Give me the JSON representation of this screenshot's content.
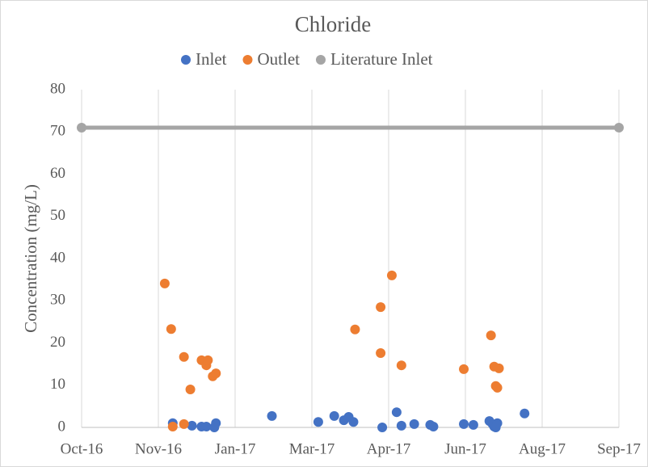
{
  "chart_data": {
    "type": "scatter",
    "title": "Chloride",
    "y_label": "Concentration (mg/L)",
    "xlim": [
      42644,
      42980
    ],
    "xticks": [
      {
        "value": 42644,
        "label": "Oct-16"
      },
      {
        "value": 42692,
        "label": "Nov-16"
      },
      {
        "value": 42740,
        "label": "Jan-17"
      },
      {
        "value": 42788,
        "label": "Mar-17"
      },
      {
        "value": 42836,
        "label": "Apr-17"
      },
      {
        "value": 42884,
        "label": "Jun-17"
      },
      {
        "value": 42932,
        "label": "Aug-17"
      },
      {
        "value": 42980,
        "label": "Sep-17"
      }
    ],
    "ylim": [
      0,
      80
    ],
    "yticks": [
      0,
      10,
      20,
      30,
      40,
      50,
      60,
      70,
      80
    ],
    "grid": "x",
    "legend": "top",
    "series": [
      {
        "name": "Inlet",
        "color": "#4472c4",
        "mode": "markers",
        "x": [
          42701,
          42713,
          42719,
          42722,
          42727,
          42728,
          42763,
          42792,
          42802,
          42808,
          42811,
          42814,
          42832,
          42841,
          42844,
          42852,
          42862,
          42864,
          42883,
          42889,
          42899,
          42901,
          42902,
          42903,
          42904,
          42921
        ],
        "values": [
          1.0,
          0.4,
          0.2,
          0.2,
          0,
          1.0,
          2.7,
          1.3,
          2.7,
          1.7,
          2.5,
          1.3,
          0,
          3.6,
          0.4,
          0.8,
          0.6,
          0.2,
          0.8,
          0.6,
          1.5,
          0.8,
          0.2,
          0,
          1.0,
          3.3
        ]
      },
      {
        "name": "Outlet",
        "color": "#ed7d31",
        "mode": "markers",
        "x": [
          42696,
          42700,
          42701,
          42708,
          42708,
          42712,
          42719,
          42722,
          42723,
          42726,
          42728,
          42815,
          42831,
          42831,
          42838,
          42844,
          42883,
          42900,
          42902,
          42905,
          42903,
          42904
        ],
        "values": [
          34.1,
          23.3,
          0.2,
          16.7,
          0.8,
          9.0,
          15.9,
          14.7,
          15.9,
          12.1,
          12.8,
          23.2,
          28.5,
          17.6,
          36,
          14.7,
          13.8,
          21.8,
          14.4,
          14.0,
          9.8,
          9.4
        ]
      },
      {
        "name": "Literature Inlet",
        "color": "#a5a5a5",
        "mode": "lines+markers",
        "x": [
          42644,
          42980
        ],
        "values": [
          71,
          71
        ]
      }
    ]
  }
}
